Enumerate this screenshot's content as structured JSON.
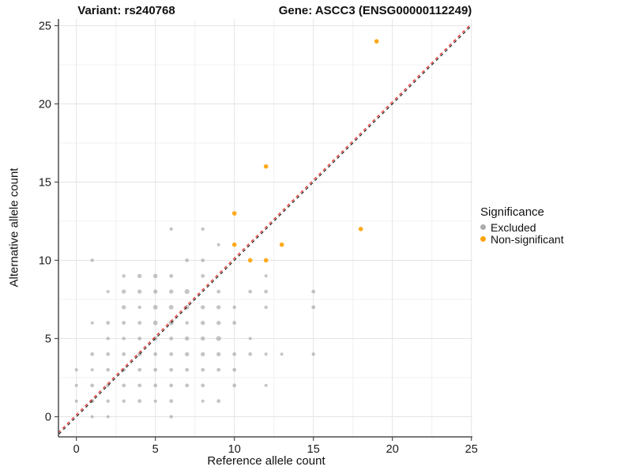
{
  "header": {
    "variant_title": "Variant: rs240768",
    "gene_title": "Gene: ASCC3 (ENSG00000112249)"
  },
  "legend": {
    "title": "Significance",
    "items": [
      {
        "label": "Excluded",
        "color": "#ABABAB"
      },
      {
        "label": "Non-significant",
        "color": "#FFA40E"
      }
    ]
  },
  "colors": {
    "excluded_point": "#8C8C8C",
    "nonsignificant_point": "#FFA40E",
    "identity_line_dark": "#262626",
    "identity_line_red": "#EF2B24",
    "grid_major": "#E4E4E4",
    "grid_minor": "#F1F1F1",
    "axis_line": "#4D4D4D",
    "tick_text": "#1A1A1A"
  },
  "chart_data": {
    "type": "scatter",
    "title": "Variant: rs240768 — Gene: ASCC3 (ENSG00000112249)",
    "xlabel": "Reference allele count",
    "ylabel": "Alternative allele count",
    "x_ticks": [
      0,
      5,
      10,
      15,
      20,
      25
    ],
    "y_ticks": [
      0,
      5,
      10,
      15,
      20,
      25
    ],
    "xlim": [
      -1.15,
      25.1
    ],
    "ylim": [
      -1.3,
      25.45
    ],
    "grid": "on",
    "legend_position": "right",
    "identity_line": {
      "slope": 1,
      "intercept": 0,
      "style": "dashed",
      "colors": [
        "#EF2B24",
        "#262626"
      ]
    },
    "series": [
      {
        "name": "Excluded",
        "points": [
          [
            1,
            0,
            2
          ],
          [
            2,
            0,
            2
          ],
          [
            6,
            0,
            2.2
          ],
          [
            0,
            1,
            2
          ],
          [
            1,
            1,
            2.6
          ],
          [
            2,
            1,
            2.2
          ],
          [
            3,
            1,
            2.2
          ],
          [
            4,
            1,
            2.4
          ],
          [
            5,
            1,
            2
          ],
          [
            6,
            1,
            2.4
          ],
          [
            8,
            1,
            2
          ],
          [
            9,
            1,
            2.4
          ],
          [
            0,
            2,
            2
          ],
          [
            1,
            2,
            2.4
          ],
          [
            2,
            2,
            2.4
          ],
          [
            3,
            2,
            2.4
          ],
          [
            4,
            2,
            2.4
          ],
          [
            5,
            2,
            2.4
          ],
          [
            6,
            2,
            2.4
          ],
          [
            7,
            2,
            2.4
          ],
          [
            8,
            2,
            2.4
          ],
          [
            10,
            2,
            2.4
          ],
          [
            12,
            2,
            2
          ],
          [
            0,
            3,
            2
          ],
          [
            1,
            3,
            2
          ],
          [
            2,
            3,
            2.4
          ],
          [
            3,
            3,
            2.4
          ],
          [
            4,
            3,
            2.4
          ],
          [
            5,
            3,
            2.4
          ],
          [
            6,
            3,
            2.4
          ],
          [
            7,
            3,
            2.4
          ],
          [
            8,
            3,
            2.4
          ],
          [
            9,
            3,
            2.4
          ],
          [
            10,
            3,
            2.4
          ],
          [
            1,
            4,
            2.4
          ],
          [
            2,
            4,
            2.4
          ],
          [
            3,
            4,
            2.4
          ],
          [
            4,
            4,
            2.7
          ],
          [
            5,
            4,
            2.4
          ],
          [
            6,
            4,
            2.4
          ],
          [
            7,
            4,
            2.7
          ],
          [
            8,
            4,
            2.7
          ],
          [
            9,
            4,
            2.7
          ],
          [
            10,
            4,
            2.4
          ],
          [
            11,
            4,
            2.4
          ],
          [
            12,
            4,
            2
          ],
          [
            13,
            4,
            2
          ],
          [
            15,
            4,
            2.2
          ],
          [
            2,
            5,
            2.2
          ],
          [
            3,
            5,
            2.2
          ],
          [
            4,
            5,
            2.4
          ],
          [
            5,
            5,
            2.7
          ],
          [
            6,
            5,
            2.4
          ],
          [
            7,
            5,
            2.7
          ],
          [
            8,
            5,
            2.7
          ],
          [
            9,
            5,
            3.1
          ],
          [
            11,
            5,
            2
          ],
          [
            1,
            6,
            2
          ],
          [
            2,
            6,
            2.4
          ],
          [
            3,
            6,
            2.4
          ],
          [
            4,
            6,
            2.4
          ],
          [
            5,
            6,
            2.9
          ],
          [
            6,
            6,
            3.1
          ],
          [
            7,
            6,
            2.2
          ],
          [
            8,
            6,
            2.7
          ],
          [
            9,
            6,
            2.7
          ],
          [
            10,
            6,
            2.4
          ],
          [
            3,
            7,
            2.7
          ],
          [
            4,
            7,
            2.2
          ],
          [
            5,
            7,
            2.9
          ],
          [
            6,
            7,
            2.9
          ],
          [
            7,
            7,
            2.9
          ],
          [
            8,
            7,
            2.7
          ],
          [
            9,
            7,
            2.7
          ],
          [
            10,
            7,
            2.2
          ],
          [
            12,
            7,
            2.2
          ],
          [
            15,
            7,
            2.4
          ],
          [
            2,
            8,
            2
          ],
          [
            3,
            8,
            2.7
          ],
          [
            4,
            8,
            2.7
          ],
          [
            5,
            8,
            2.7
          ],
          [
            6,
            8,
            2.7
          ],
          [
            7,
            8,
            3.1
          ],
          [
            9,
            8,
            2.4
          ],
          [
            11,
            8,
            2.4
          ],
          [
            12,
            8,
            2.4
          ],
          [
            15,
            8,
            2.4
          ],
          [
            3,
            9,
            2.2
          ],
          [
            4,
            9,
            2.7
          ],
          [
            5,
            9,
            2.7
          ],
          [
            6,
            9,
            2.4
          ],
          [
            8,
            9,
            2.4
          ],
          [
            12,
            9,
            2
          ],
          [
            1,
            10,
            2.2
          ],
          [
            7,
            10,
            2.4
          ],
          [
            8,
            10,
            2.4
          ],
          [
            9,
            11,
            2
          ],
          [
            6,
            12,
            2.2
          ],
          [
            8,
            12,
            2.2
          ]
        ]
      },
      {
        "name": "Non-significant",
        "points": [
          [
            10,
            11,
            2.8
          ],
          [
            10,
            13,
            2.8
          ],
          [
            11,
            10,
            2.8
          ],
          [
            12,
            10,
            2.8
          ],
          [
            12,
            16,
            2.8
          ],
          [
            13,
            11,
            2.8
          ],
          [
            18,
            12,
            2.8
          ],
          [
            19,
            24,
            2.8
          ]
        ]
      }
    ]
  }
}
